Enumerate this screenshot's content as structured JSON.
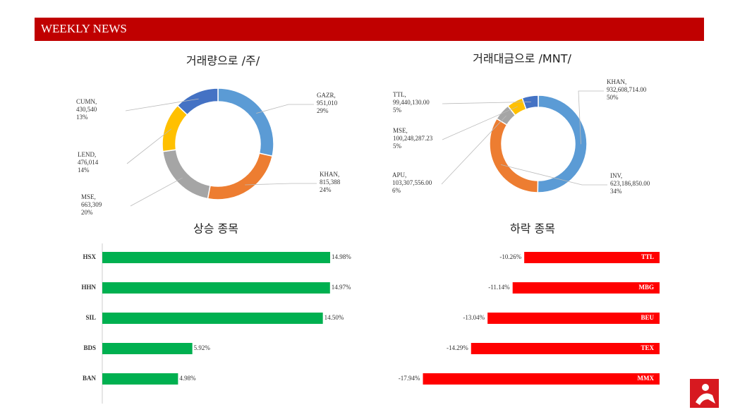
{
  "header": {
    "title": "WEEKLY NEWS"
  },
  "chart_data": [
    {
      "type": "donut",
      "title": "거래량으로 /주/",
      "categories": [
        "GAZR,",
        "KHAN,",
        "MSE,",
        "LEND,",
        "CUMN,"
      ],
      "values": [
        951010,
        815388,
        663309,
        476014,
        430540
      ],
      "value_labels": [
        "951,010",
        "815,388",
        "663,309",
        "476,014",
        "430,540"
      ],
      "percent_labels": [
        "29%",
        "24%",
        "20%",
        "14%",
        "13%"
      ],
      "colors": [
        "#5b9bd5",
        "#ed7d31",
        "#a5a5a5",
        "#ffc000",
        "#4472c4"
      ]
    },
    {
      "type": "donut",
      "title": "거래대금으로 /MNT/",
      "categories": [
        "KHAN,",
        "INV,",
        "APU,",
        "MSE,",
        "TTL,"
      ],
      "values": [
        932608714.0,
        623186850.0,
        103307556.0,
        100248287.23,
        99440130.0
      ],
      "value_labels": [
        "932,608,714.00",
        "623,186,850.00",
        "103,307,556.00",
        "100,248,287.23",
        "99,440,130.00"
      ],
      "percent_labels": [
        "50%",
        "34%",
        "6%",
        "5%",
        "5%"
      ],
      "colors": [
        "#5b9bd5",
        "#ed7d31",
        "#a5a5a5",
        "#ffc000",
        "#4472c4"
      ]
    },
    {
      "type": "hbar",
      "title": "상승 종목",
      "categories": [
        "HSX",
        "HHN",
        "SIL",
        "BDS",
        "BAN"
      ],
      "values": [
        14.98,
        14.97,
        14.5,
        5.92,
        4.98
      ],
      "value_labels": [
        "14.98%",
        "14.97%",
        "14.50%",
        "5.92%",
        "4.98%"
      ],
      "color": "#00b050",
      "xlim": [
        0,
        16
      ]
    },
    {
      "type": "hbar",
      "title": "하락 종목",
      "categories": [
        "TTL",
        "MBG",
        "BEU",
        "TEX",
        "MMX"
      ],
      "values": [
        -10.26,
        -11.14,
        -13.04,
        -14.29,
        -17.94
      ],
      "value_labels": [
        "-10.26%",
        "-11.14%",
        "-13.04%",
        "-14.29%",
        "-17.94%"
      ],
      "color": "#ff0000",
      "xlim": [
        -20,
        0
      ]
    }
  ]
}
